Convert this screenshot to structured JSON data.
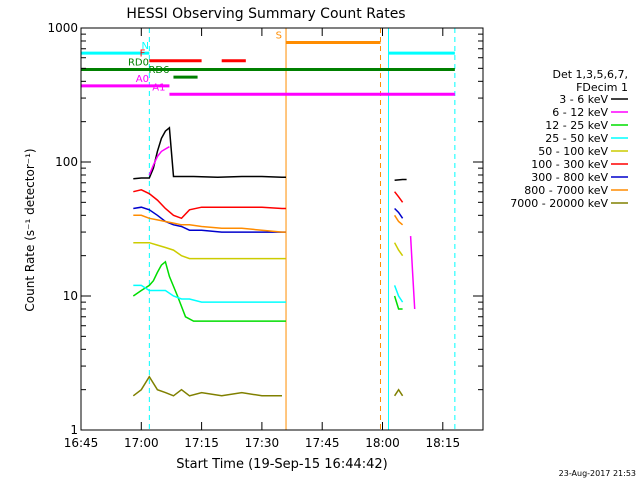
{
  "chart_data": {
    "type": "line",
    "title": "HESSI Observing Summary Count Rates",
    "xlabel": "Start Time (19-Sep-15 16:44:42)",
    "ylabel": "Count Rate (s⁻¹ detector⁻¹)",
    "yscale": "log",
    "ylim": [
      1,
      1000
    ],
    "xlim_minutes_after_1645": [
      0,
      100
    ],
    "x_ticks": [
      "16:45",
      "17:00",
      "17:15",
      "17:30",
      "17:45",
      "18:00",
      "18:15"
    ],
    "y_ticks": [
      "1",
      "10",
      "100",
      "1000"
    ],
    "grid": false,
    "timestamp": "23-Aug-2017 21:53",
    "legend": {
      "placement": "right",
      "header": [
        "Det 1,3,5,6,7,",
        "FDecim 1"
      ],
      "entries": [
        {
          "label": "3 - 6 keV",
          "color": "#000000"
        },
        {
          "label": "6 - 12 keV",
          "color": "#ff00ff"
        },
        {
          "label": "12 - 25 keV",
          "color": "#00dd00"
        },
        {
          "label": "25 - 50 keV",
          "color": "#00ffff"
        },
        {
          "label": "50 - 100 keV",
          "color": "#cccc00"
        },
        {
          "label": "100 - 300 keV",
          "color": "#ff0000"
        },
        {
          "label": "300 - 800 keV",
          "color": "#0000cc"
        },
        {
          "label": "800 - 7000 keV",
          "color": "#ff8c00"
        },
        {
          "label": "7000 - 20000 keV",
          "color": "#808000"
        }
      ]
    },
    "flag_bars": [
      {
        "label": "N",
        "color": "#00ffff",
        "y": 650,
        "segments": [
          [
            0,
            17
          ],
          [
            76.5,
            93
          ]
        ]
      },
      {
        "label": "S",
        "color": "#ff8c00",
        "y": 780,
        "segments": [
          [
            51,
            74.5
          ]
        ]
      },
      {
        "label": "F",
        "color": "#ff0000",
        "y": 570,
        "segments": [
          [
            17,
            30
          ],
          [
            35,
            41
          ]
        ]
      },
      {
        "label": "RD0",
        "color": "#008000",
        "y": 490,
        "segments": [
          [
            0,
            93
          ]
        ]
      },
      {
        "label": "RD6",
        "color": "#008000",
        "y": 430,
        "segments": [
          [
            23,
            29
          ]
        ]
      },
      {
        "label": "A0",
        "color": "#ff00ff",
        "y": 370,
        "segments": [
          [
            0,
            22
          ]
        ]
      },
      {
        "label": "A1",
        "color": "#ff00ff",
        "y": 320,
        "segments": [
          [
            22,
            93
          ]
        ]
      }
    ],
    "vertical_markers": [
      {
        "x": 0,
        "color": "#00ffff",
        "style": "solid"
      },
      {
        "x": 17,
        "color": "#00ffff",
        "style": "dashed"
      },
      {
        "x": 51,
        "color": "#ff8c00",
        "style": "solid"
      },
      {
        "x": 74.5,
        "color": "#ff8c00",
        "style": "dashed"
      },
      {
        "x": 76.5,
        "color": "#00ffff",
        "style": "solid"
      },
      {
        "x": 93,
        "color": "#00ffff",
        "style": "dashed"
      }
    ],
    "series": [
      {
        "name": "3 - 6 keV",
        "color": "#000000",
        "segments": [
          [
            [
              13,
              75
            ],
            [
              15,
              76
            ],
            [
              17,
              76
            ],
            [
              18,
              90
            ],
            [
              19,
              120
            ],
            [
              20,
              150
            ],
            [
              21,
              170
            ],
            [
              22,
              180
            ],
            [
              23,
              78
            ],
            [
              28,
              78
            ],
            [
              34,
              77
            ],
            [
              40,
              78
            ],
            [
              45,
              78
            ],
            [
              50,
              77
            ],
            [
              51,
              77
            ]
          ],
          [
            [
              78,
              73
            ],
            [
              80,
              74
            ],
            [
              81,
              74
            ]
          ]
        ]
      },
      {
        "name": "6 - 12 keV",
        "color": "#ff00ff",
        "segments": [
          [
            [
              17,
              80
            ],
            [
              18,
              95
            ],
            [
              19,
              110
            ],
            [
              20,
              120
            ],
            [
              21,
              125
            ],
            [
              22,
              130
            ]
          ],
          [
            [
              82,
              28
            ],
            [
              82.5,
              15
            ],
            [
              83,
              8
            ]
          ]
        ]
      },
      {
        "name": "12 - 25 keV",
        "color": "#00dd00",
        "segments": [
          [
            [
              13,
              10
            ],
            [
              15,
              11
            ],
            [
              17,
              12
            ],
            [
              18,
              13
            ],
            [
              19,
              15
            ],
            [
              20,
              17
            ],
            [
              21,
              18
            ],
            [
              22,
              14
            ],
            [
              24,
              10
            ],
            [
              26,
              7
            ],
            [
              28,
              6.5
            ],
            [
              30,
              6.5
            ],
            [
              35,
              6.5
            ],
            [
              40,
              6.5
            ],
            [
              45,
              6.5
            ],
            [
              50,
              6.5
            ],
            [
              51,
              6.5
            ]
          ],
          [
            [
              78,
              10
            ],
            [
              79,
              8
            ],
            [
              80,
              8
            ]
          ]
        ]
      },
      {
        "name": "25 - 50 keV",
        "color": "#00ffff",
        "segments": [
          [
            [
              13,
              12
            ],
            [
              15,
              12
            ],
            [
              17,
              11
            ],
            [
              19,
              11
            ],
            [
              21,
              11
            ],
            [
              23,
              10
            ],
            [
              25,
              9.5
            ],
            [
              27,
              9.5
            ],
            [
              30,
              9
            ],
            [
              35,
              9
            ],
            [
              40,
              9
            ],
            [
              45,
              9
            ],
            [
              50,
              9
            ],
            [
              51,
              9
            ]
          ],
          [
            [
              78,
              12
            ],
            [
              79,
              10
            ],
            [
              80,
              9
            ]
          ]
        ]
      },
      {
        "name": "50 - 100 keV",
        "color": "#cccc00",
        "segments": [
          [
            [
              13,
              25
            ],
            [
              15,
              25
            ],
            [
              17,
              25
            ],
            [
              19,
              24
            ],
            [
              21,
              23
            ],
            [
              23,
              22
            ],
            [
              25,
              20
            ],
            [
              27,
              19
            ],
            [
              30,
              19
            ],
            [
              35,
              19
            ],
            [
              40,
              19
            ],
            [
              45,
              19
            ],
            [
              50,
              19
            ],
            [
              51,
              19
            ]
          ],
          [
            [
              78,
              25
            ],
            [
              79,
              22
            ],
            [
              80,
              20
            ]
          ]
        ]
      },
      {
        "name": "100 - 300 keV",
        "color": "#ff0000",
        "segments": [
          [
            [
              13,
              60
            ],
            [
              15,
              62
            ],
            [
              17,
              58
            ],
            [
              19,
              52
            ],
            [
              21,
              45
            ],
            [
              23,
              40
            ],
            [
              25,
              38
            ],
            [
              27,
              44
            ],
            [
              30,
              46
            ],
            [
              35,
              46
            ],
            [
              40,
              46
            ],
            [
              45,
              46
            ],
            [
              50,
              45
            ],
            [
              51,
              45
            ]
          ],
          [
            [
              78,
              60
            ],
            [
              79,
              55
            ],
            [
              80,
              50
            ]
          ]
        ]
      },
      {
        "name": "300 - 800 keV",
        "color": "#0000cc",
        "segments": [
          [
            [
              13,
              45
            ],
            [
              15,
              46
            ],
            [
              17,
              44
            ],
            [
              19,
              40
            ],
            [
              21,
              36
            ],
            [
              23,
              34
            ],
            [
              25,
              33
            ],
            [
              27,
              31
            ],
            [
              30,
              31
            ],
            [
              35,
              30
            ],
            [
              40,
              30
            ],
            [
              45,
              30
            ],
            [
              50,
              30
            ],
            [
              51,
              30
            ]
          ],
          [
            [
              78,
              45
            ],
            [
              79,
              42
            ],
            [
              80,
              38
            ]
          ]
        ]
      },
      {
        "name": "800 - 7000 keV",
        "color": "#ff8c00",
        "segments": [
          [
            [
              13,
              40
            ],
            [
              15,
              40
            ],
            [
              17,
              38
            ],
            [
              19,
              37
            ],
            [
              21,
              36
            ],
            [
              23,
              35
            ],
            [
              25,
              34
            ],
            [
              27,
              34
            ],
            [
              30,
              33
            ],
            [
              35,
              32
            ],
            [
              40,
              32
            ],
            [
              45,
              31
            ],
            [
              50,
              30
            ],
            [
              51,
              30
            ]
          ],
          [
            [
              78,
              40
            ],
            [
              79,
              36
            ],
            [
              80,
              34
            ]
          ]
        ]
      },
      {
        "name": "7000 - 20000 keV",
        "color": "#808000",
        "segments": [
          [
            [
              13,
              1.8
            ],
            [
              15,
              2
            ],
            [
              17,
              2.5
            ],
            [
              19,
              2
            ],
            [
              21,
              1.9
            ],
            [
              23,
              1.8
            ],
            [
              25,
              2
            ],
            [
              27,
              1.8
            ],
            [
              30,
              1.9
            ],
            [
              35,
              1.8
            ],
            [
              40,
              1.9
            ],
            [
              45,
              1.8
            ],
            [
              50,
              1.8
            ]
          ],
          [
            [
              78,
              1.8
            ],
            [
              79,
              2
            ],
            [
              80,
              1.8
            ]
          ]
        ]
      }
    ]
  }
}
